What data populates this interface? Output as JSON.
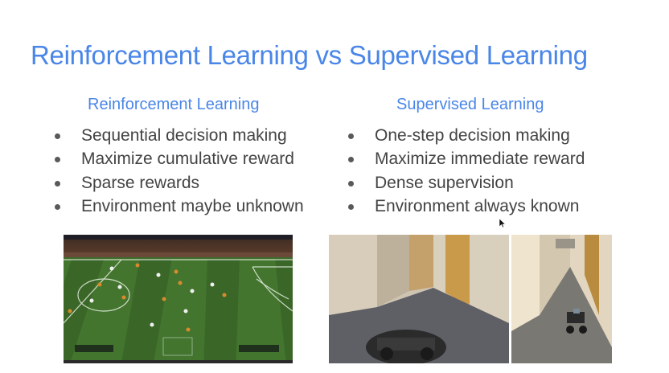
{
  "slide": {
    "title": "Reinforcement Learning vs Supervised Learning",
    "left": {
      "heading": "Reinforcement Learning",
      "bullets": [
        "Sequential decision making",
        "Maximize cumulative reward",
        "Sparse rewards",
        "Environment maybe unknown"
      ]
    },
    "right": {
      "heading": "Supervised Learning",
      "bullets": [
        "One-step decision making",
        "Maximize immediate reward",
        "Dense supervision",
        "Environment always known"
      ]
    }
  },
  "images": {
    "left": "soccer-game-screenshot",
    "right": "rc-car-hallway-photos"
  },
  "colors": {
    "title": "#4a86e8",
    "body_text": "#434343",
    "field_green": "#3f6b2c"
  }
}
